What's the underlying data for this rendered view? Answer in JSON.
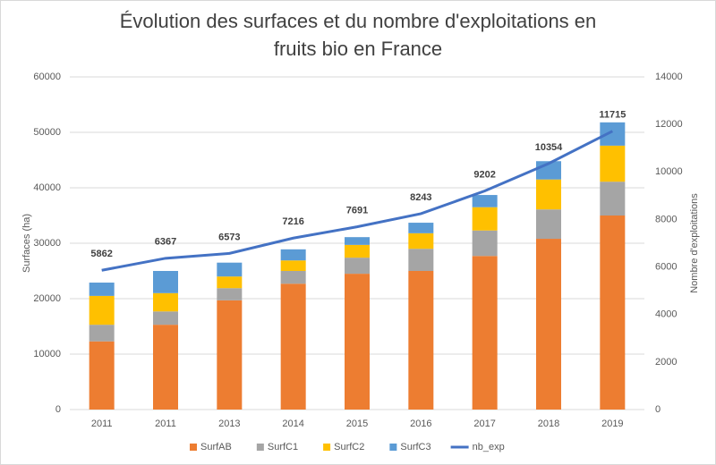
{
  "chart_data": {
    "type": "bar",
    "stacked": true,
    "title": "Évolution des surfaces et du nombre d'exploitations en fruits bio en France",
    "ylabel": "Surfaces (ha)",
    "y2label": "Nombre d'exploitations",
    "categories": [
      "2011",
      "2011",
      "2013",
      "2014",
      "2015",
      "2016",
      "2017",
      "2018",
      "2019"
    ],
    "series": [
      {
        "name": "SurfAB",
        "color": "#ed7d31",
        "values": [
          12300,
          15300,
          19700,
          22700,
          24500,
          25000,
          27700,
          30800,
          35000
        ]
      },
      {
        "name": "SurfC1",
        "color": "#a5a5a5",
        "values": [
          3000,
          2400,
          2200,
          2300,
          2900,
          4000,
          4600,
          5300,
          6100
        ]
      },
      {
        "name": "SurfC2",
        "color": "#ffc000",
        "values": [
          5200,
          3300,
          2100,
          1900,
          2300,
          2800,
          4200,
          5400,
          6500
        ]
      },
      {
        "name": "SurfC3",
        "color": "#5b9bd5",
        "values": [
          2400,
          4000,
          2500,
          2000,
          1400,
          1900,
          2200,
          3300,
          4200
        ]
      },
      {
        "name": "nb_exp",
        "color": "#4472c4",
        "type": "line",
        "axis": "y2",
        "values": [
          5862,
          6367,
          6573,
          7216,
          7691,
          8243,
          9202,
          10354,
          11715
        ]
      }
    ],
    "ylim": [
      0,
      60000
    ],
    "yticks": [
      0,
      10000,
      20000,
      30000,
      40000,
      50000,
      60000
    ],
    "y2lim": [
      0,
      14000
    ],
    "y2ticks": [
      0,
      2000,
      4000,
      6000,
      8000,
      10000,
      12000,
      14000
    ],
    "grid": true,
    "legend": "bottom"
  }
}
